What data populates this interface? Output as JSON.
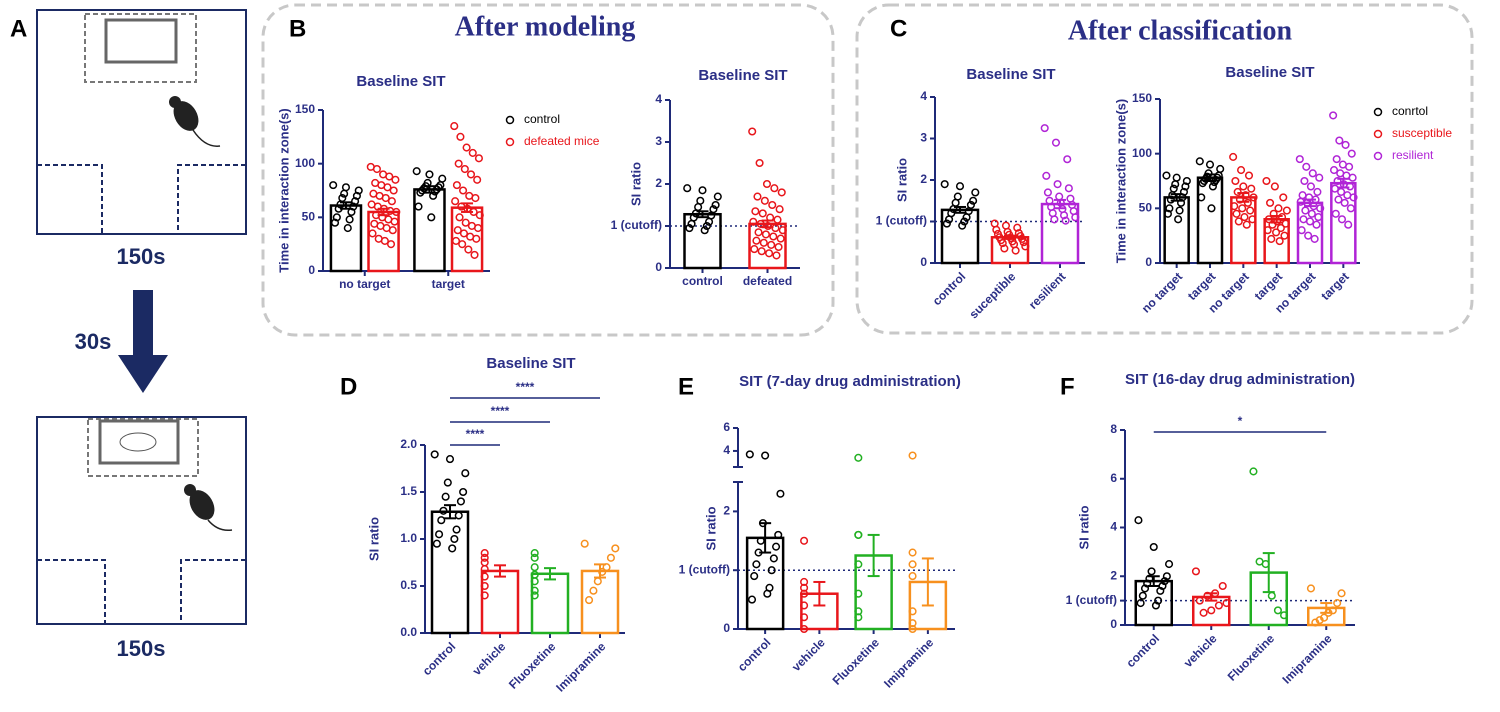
{
  "figure": {
    "panels": [
      "A",
      "B",
      "C",
      "D",
      "E",
      "F"
    ],
    "headers": [
      "After modeling",
      "After classification"
    ],
    "durations": [
      "150s",
      "30s",
      "150s"
    ]
  },
  "chart_data": [
    {
      "type": "bar",
      "title": "Baseline SIT",
      "y_label": "Time in interaction zone(s)",
      "categories": [
        "no target",
        "target"
      ],
      "ylim": [
        0,
        150
      ],
      "yticks": [
        0,
        50,
        100,
        150
      ],
      "legend": "upper right",
      "series": [
        {
          "name": "control",
          "color": "#000000",
          "values": [
            61,
            76
          ],
          "errors": [
            3,
            3
          ],
          "points": [
            [
              80,
              78,
              75,
              72,
              70,
              68,
              65,
              62,
              60,
              58,
              55,
              50,
              48,
              45,
              40
            ],
            [
              93,
              90,
              86,
              82,
              80,
              79,
              78,
              77,
              76,
              75,
              74,
              73,
              70,
              60,
              50
            ]
          ]
        },
        {
          "name": "defeated mice",
          "color": "#e8161b",
          "values": [
            55,
            59
          ],
          "errors": [
            3,
            4
          ],
          "points": [
            [
              97,
              95,
              90,
              88,
              85,
              82,
              80,
              78,
              75,
              72,
              70,
              68,
              65,
              62,
              60,
              58,
              56,
              55,
              52,
              50,
              48,
              46,
              44,
              42,
              40,
              38,
              35,
              30,
              28,
              25
            ],
            [
              135,
              125,
              115,
              110,
              105,
              100,
              95,
              90,
              85,
              80,
              75,
              70,
              68,
              65,
              60,
              58,
              55,
              52,
              50,
              45,
              42,
              40,
              38,
              35,
              32,
              30,
              28,
              25,
              20,
              15
            ]
          ]
        }
      ]
    },
    {
      "type": "bar",
      "title": "Baseline SIT",
      "y_label": "SI ratio",
      "categories": [
        "control",
        "defeated"
      ],
      "ylim": [
        0,
        4
      ],
      "yticks": [
        0,
        {
          "value": 1,
          "label": "1 (cutoff)"
        },
        2,
        3,
        4
      ],
      "reference_line": 1,
      "values": [
        1.28,
        1.05
      ],
      "errors": [
        0.07,
        0.08
      ],
      "colors": [
        "#000000",
        "#e8161b"
      ],
      "points": [
        [
          1.9,
          1.85,
          1.7,
          1.6,
          1.5,
          1.45,
          1.4,
          1.3,
          1.25,
          1.2,
          1.1,
          1.05,
          1.0,
          0.95,
          0.9
        ],
        [
          3.25,
          2.5,
          2.0,
          1.9,
          1.8,
          1.7,
          1.6,
          1.5,
          1.4,
          1.35,
          1.3,
          1.2,
          1.15,
          1.1,
          1.05,
          1.0,
          0.95,
          0.9,
          0.85,
          0.8,
          0.75,
          0.7,
          0.65,
          0.6,
          0.55,
          0.5,
          0.45,
          0.4,
          0.35,
          0.3
        ]
      ]
    },
    {
      "type": "bar",
      "title": "Baseline SIT",
      "y_label": "SI ratio",
      "categories": [
        "control",
        "suceptible",
        "resilient"
      ],
      "ylim": [
        0,
        4
      ],
      "yticks": [
        0,
        {
          "value": 1,
          "label": "1 (cutoff)"
        },
        2,
        3,
        4
      ],
      "reference_line": 1,
      "values": [
        1.28,
        0.62,
        1.42
      ],
      "errors": [
        0.07,
        0.04,
        0.1
      ],
      "colors": [
        "#000000",
        "#e8161b",
        "#b024d6"
      ],
      "points": [
        [
          1.9,
          1.85,
          1.7,
          1.6,
          1.5,
          1.45,
          1.4,
          1.3,
          1.25,
          1.2,
          1.1,
          1.05,
          1.0,
          0.95,
          0.9
        ],
        [
          0.95,
          0.9,
          0.85,
          0.8,
          0.75,
          0.72,
          0.7,
          0.68,
          0.65,
          0.62,
          0.6,
          0.58,
          0.55,
          0.52,
          0.5,
          0.48,
          0.45,
          0.4,
          0.35,
          0.3
        ],
        [
          3.25,
          2.9,
          2.5,
          2.1,
          1.9,
          1.8,
          1.7,
          1.6,
          1.55,
          1.5,
          1.45,
          1.4,
          1.35,
          1.3,
          1.25,
          1.2,
          1.15,
          1.1,
          1.05,
          1.02
        ]
      ]
    },
    {
      "type": "bar",
      "title": "Baseline SIT",
      "y_label": "Time in interaction zone(s)",
      "categories": [
        "no target",
        "target",
        "no target",
        "target",
        "no target",
        "target"
      ],
      "ylim": [
        0,
        150
      ],
      "yticks": [
        0,
        50,
        100,
        150
      ],
      "legend": "upper right",
      "series": [
        {
          "name": "conrtol",
          "color": "#000000",
          "values": [
            60,
            78,
            null,
            null,
            null,
            null
          ],
          "errors": [
            3,
            3,
            null,
            null,
            null,
            null
          ],
          "points": [
            [
              80,
              78,
              75,
              72,
              70,
              68,
              65,
              62,
              60,
              58,
              55,
              50,
              48,
              45,
              40
            ],
            [
              93,
              90,
              86,
              82,
              80,
              79,
              78,
              77,
              76,
              75,
              74,
              73,
              70,
              60,
              50
            ],
            null,
            null,
            null,
            null
          ]
        },
        {
          "name": "susceptible",
          "color": "#e8161b",
          "values": [
            null,
            null,
            60,
            40,
            null,
            null
          ],
          "errors": [
            null,
            null,
            4,
            3,
            null,
            null
          ],
          "points": [
            null,
            null,
            [
              97,
              85,
              80,
              75,
              70,
              68,
              65,
              62,
              60,
              58,
              55,
              52,
              50,
              48,
              45,
              42,
              40,
              38,
              35
            ],
            [
              75,
              70,
              60,
              55,
              50,
              48,
              45,
              42,
              40,
              38,
              36,
              35,
              32,
              30,
              28,
              25,
              22,
              20
            ],
            null,
            null
          ]
        },
        {
          "name": "resilient",
          "color": "#b024d6",
          "values": [
            null,
            null,
            null,
            null,
            55,
            73
          ],
          "errors": [
            null,
            null,
            null,
            null,
            3,
            4
          ],
          "points": [
            null,
            null,
            null,
            null,
            [
              95,
              88,
              82,
              78,
              75,
              70,
              65,
              62,
              60,
              58,
              56,
              55,
              52,
              50,
              48,
              45,
              42,
              40,
              38,
              35,
              30,
              25,
              22
            ],
            [
              135,
              112,
              108,
              100,
              95,
              90,
              88,
              85,
              82,
              80,
              78,
              75,
              72,
              70,
              68,
              65,
              62,
              60,
              58,
              55,
              50,
              45,
              40,
              35
            ]
          ]
        }
      ]
    },
    {
      "type": "bar",
      "title": "Baseline SIT",
      "y_label": "SI ratio",
      "categories": [
        "control",
        "vehicle",
        "Fluoxetine",
        "Imipramine"
      ],
      "ylim": [
        0,
        2
      ],
      "yticks": [
        {
          "value": 0,
          "label": "0.0"
        },
        0.5,
        {
          "value": 1,
          "label": "1.0"
        },
        1.5,
        {
          "value": 2,
          "label": "2.0"
        }
      ],
      "values": [
        1.29,
        0.66,
        0.63,
        0.66
      ],
      "errors": [
        0.07,
        0.06,
        0.06,
        0.07
      ],
      "colors": [
        "#000000",
        "#e8161b",
        "#22b022",
        "#f7901e"
      ],
      "points": [
        [
          1.9,
          1.85,
          1.7,
          1.6,
          1.5,
          1.45,
          1.4,
          1.3,
          1.25,
          1.2,
          1.1,
          1.05,
          1.0,
          0.95,
          0.9
        ],
        [
          0.85,
          0.8,
          0.75,
          0.68,
          0.6,
          0.5,
          0.4
        ],
        [
          0.85,
          0.8,
          0.7,
          0.62,
          0.55,
          0.45,
          0.4
        ],
        [
          0.95,
          0.9,
          0.8,
          0.7,
          0.65,
          0.55,
          0.45,
          0.35
        ]
      ],
      "significance": [
        {
          "groups": [
            0,
            1
          ],
          "label": "****"
        },
        {
          "groups": [
            0,
            2
          ],
          "label": "****"
        },
        {
          "groups": [
            0,
            3
          ],
          "label": "****"
        }
      ]
    },
    {
      "type": "bar",
      "title": "SIT (7-day drug administration)",
      "y_label": "SI ratio",
      "categories": [
        "control",
        "vehicle",
        "Fluoxetine",
        "Imipramine"
      ],
      "ylim": [
        0,
        6
      ],
      "ybreak": [
        2.5,
        2.6
      ],
      "yticks": [
        0,
        {
          "value": 1,
          "label": "1 (cutoff)"
        },
        2,
        4,
        6
      ],
      "reference_line": 1,
      "values": [
        1.55,
        0.6,
        1.25,
        0.8
      ],
      "errors": [
        0.25,
        0.2,
        0.35,
        0.4
      ],
      "colors": [
        "#000000",
        "#e8161b",
        "#22b022",
        "#f7901e"
      ],
      "points": [
        [
          3.7,
          3.6,
          2.3,
          1.8,
          1.6,
          1.5,
          1.4,
          1.3,
          1.2,
          1.1,
          1.0,
          0.9,
          0.7,
          0.5,
          0.6
        ],
        [
          1.5,
          0.8,
          0.7,
          0.6,
          0.4,
          0.2,
          0.0
        ],
        [
          3.4,
          1.6,
          1.6,
          1.1,
          0.6,
          0.3,
          0.2
        ],
        [
          3.6,
          1.3,
          1.1,
          0.9,
          0.3,
          0.1,
          0.0
        ]
      ]
    },
    {
      "type": "bar",
      "title": "SIT (16-day drug administration)",
      "y_label": "SI ratio",
      "categories": [
        "control",
        "vehicle",
        "Fluoxetine",
        "Imipramine"
      ],
      "ylim": [
        0,
        8
      ],
      "yticks": [
        0,
        {
          "value": 1,
          "label": "1 (cutoff)"
        },
        2,
        4,
        6,
        8
      ],
      "reference_line": 1,
      "values": [
        1.8,
        1.15,
        2.15,
        0.7
      ],
      "errors": [
        0.2,
        0.15,
        0.8,
        0.2
      ],
      "colors": [
        "#000000",
        "#e8161b",
        "#22b022",
        "#f7901e"
      ],
      "points": [
        [
          4.3,
          3.2,
          2.5,
          2.2,
          2.0,
          1.9,
          1.8,
          1.7,
          1.6,
          1.5,
          1.4,
          1.2,
          1.0,
          0.9,
          0.8
        ],
        [
          2.2,
          1.6,
          1.3,
          1.2,
          1.0,
          0.9,
          0.8,
          0.6,
          0.5
        ],
        [
          6.3,
          2.6,
          2.5,
          1.2,
          0.6,
          0.4
        ],
        [
          1.5,
          1.3,
          0.9,
          0.6,
          0.5,
          0.3,
          0.2,
          0.1
        ]
      ],
      "significance": [
        {
          "groups": [
            0,
            3
          ],
          "label": "*"
        }
      ]
    }
  ]
}
